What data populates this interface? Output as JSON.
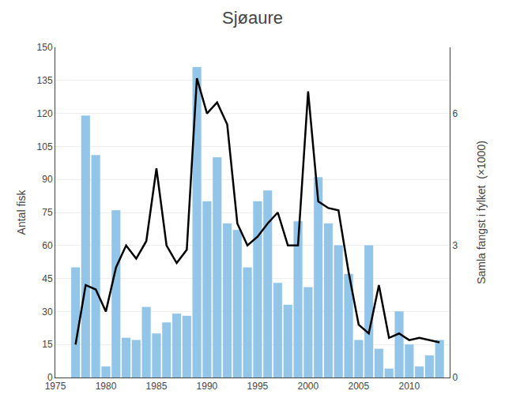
{
  "chart_data": {
    "type": "bar",
    "title": "Sjøaure",
    "ylabel": "Antal fisk",
    "y2label": "Samla fangst i fylket  (×1000)",
    "x": [
      1977,
      1978,
      1979,
      1980,
      1981,
      1982,
      1983,
      1984,
      1985,
      1986,
      1987,
      1988,
      1989,
      1990,
      1991,
      1992,
      1993,
      1994,
      1995,
      1996,
      1997,
      1998,
      1999,
      2000,
      2001,
      2002,
      2003,
      2004,
      2005,
      2006,
      2007,
      2008,
      2009,
      2010,
      2011,
      2012,
      2013
    ],
    "series": [
      {
        "type": "bar",
        "color": "#92C5E8",
        "values": [
          50,
          119,
          101,
          5,
          76,
          18,
          17,
          32,
          20,
          25,
          29,
          28,
          141,
          80,
          100,
          70,
          67,
          50,
          80,
          85,
          43,
          33,
          71,
          41,
          91,
          70,
          60,
          47,
          17,
          60,
          13,
          4,
          30,
          15,
          5,
          10,
          17
        ]
      },
      {
        "type": "line",
        "axis": "y2",
        "color": "#000000",
        "values": [
          0.75,
          2.1,
          2.0,
          1.5,
          2.5,
          3.0,
          2.7,
          3.1,
          4.75,
          3.0,
          2.6,
          2.9,
          6.8,
          6.0,
          6.25,
          5.75,
          3.5,
          3.0,
          3.2,
          3.5,
          3.75,
          3.0,
          3.0,
          6.5,
          4.0,
          3.85,
          3.8,
          2.4,
          1.2,
          1.0,
          2.1,
          0.9,
          1.0,
          0.85,
          0.9,
          0.85,
          0.8
        ]
      }
    ],
    "xlim": [
      1975.0,
      2014.0
    ],
    "xticks": [
      1975,
      1980,
      1985,
      1990,
      1995,
      2000,
      2005,
      2010
    ],
    "ylim": [
      0,
      150
    ],
    "yticks": [
      0,
      15,
      30,
      45,
      60,
      75,
      90,
      105,
      120,
      135,
      150
    ],
    "y2lim": [
      0,
      7.5
    ],
    "y2ticks": [
      0,
      3,
      6
    ],
    "grid": true
  }
}
